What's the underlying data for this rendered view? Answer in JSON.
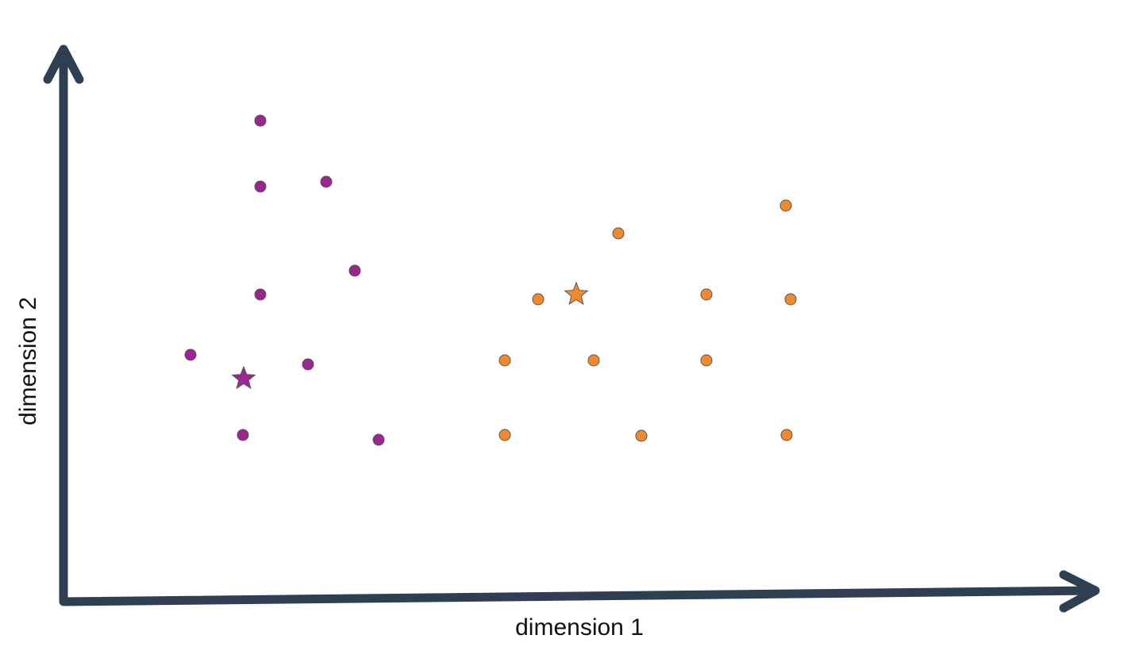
{
  "chart_data": {
    "type": "scatter",
    "x_label": "dimension 1",
    "y_label": "dimension 2",
    "xlim": [
      0,
      13
    ],
    "ylim": [
      0,
      7
    ],
    "series": [
      {
        "color": "#9c2590",
        "marker": "circle",
        "x": [
          2.48,
          2.48,
          3.31,
          3.67,
          2.48,
          1.6,
          3.08,
          2.26,
          3.97
        ],
        "y": [
          6.03,
          5.2,
          5.26,
          4.14,
          3.84,
          3.08,
          2.96,
          2.07,
          2.01
        ]
      },
      {
        "color": "#9c2590",
        "marker": "star",
        "x": [
          2.27
        ],
        "y": [
          2.78
        ]
      },
      {
        "color": "#f08a2c",
        "marker": "circle",
        "x": [
          9.1,
          6.99,
          5.98,
          8.1,
          9.16,
          5.56,
          6.68,
          8.1,
          5.56,
          7.28,
          9.11
        ],
        "y": [
          4.96,
          4.61,
          3.78,
          3.84,
          3.78,
          3.01,
          3.01,
          3.01,
          2.07,
          2.06,
          2.07
        ]
      },
      {
        "color": "#f08a2c",
        "marker": "star",
        "x": [
          6.46
        ],
        "y": [
          3.84
        ]
      }
    ]
  }
}
